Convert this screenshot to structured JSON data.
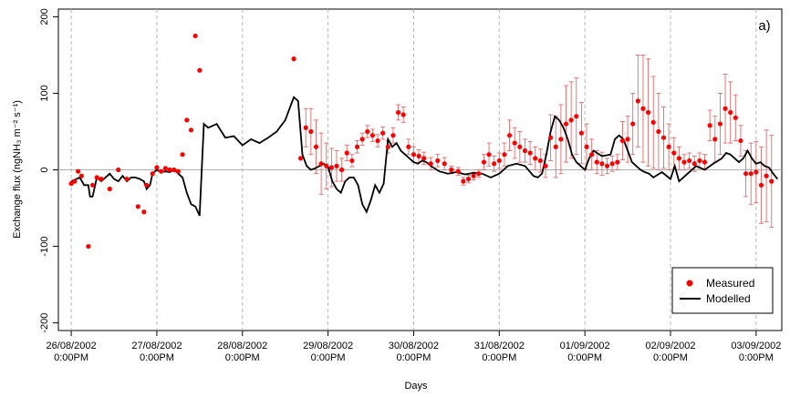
{
  "chart_data": {
    "type": "scatter",
    "panel_label": "a)",
    "xlabel": "Days",
    "ylabel": "Exchange flux (ngNH₃ m⁻² s⁻¹)",
    "ylim": [
      -210,
      210
    ],
    "xlim": [
      -0.15,
      8.3
    ],
    "yticks": [
      -200,
      -100,
      0,
      100,
      200
    ],
    "xticks": [
      {
        "pos": 0,
        "date": "26/08/2002",
        "time": "0:00PM"
      },
      {
        "pos": 1,
        "date": "27/08/2002",
        "time": "0:00PM"
      },
      {
        "pos": 2,
        "date": "28/08/2002",
        "time": "0:00PM"
      },
      {
        "pos": 3,
        "date": "29/08/2002",
        "time": "0:00PM"
      },
      {
        "pos": 4,
        "date": "30/08/2002",
        "time": "0:00PM"
      },
      {
        "pos": 5,
        "date": "31/08/2002",
        "time": "0:00PM"
      },
      {
        "pos": 6,
        "date": "01/09/2002",
        "time": "0:00PM"
      },
      {
        "pos": 7,
        "date": "02/09/2002",
        "time": "0:00PM"
      },
      {
        "pos": 8,
        "date": "03/09/2002",
        "time": "0:00PM"
      }
    ],
    "grid": "vertical dashed at day ticks",
    "reference_line_y": 0,
    "legend_position": "bottom-right",
    "series": [
      {
        "name": "Measured",
        "kind": "points",
        "color": "#ff0000",
        "x": [
          0.0,
          0.04,
          0.08,
          0.12,
          0.2,
          0.25,
          0.3,
          0.35,
          0.45,
          0.55,
          0.65,
          0.78,
          0.85,
          0.88,
          0.95,
          1.0,
          1.05,
          1.1,
          1.15,
          1.2,
          1.25,
          1.3,
          1.35,
          1.4,
          1.45,
          1.5,
          2.6,
          2.68,
          2.74,
          2.8,
          2.86,
          2.92,
          2.98,
          3.04,
          3.1,
          3.16,
          3.22,
          3.28,
          3.34,
          3.4,
          3.46,
          3.52,
          3.58,
          3.64,
          3.7,
          3.76,
          3.82,
          3.88,
          3.94,
          4.0,
          4.06,
          4.12,
          4.2,
          4.28,
          4.36,
          4.44,
          4.52,
          4.58,
          4.64,
          4.7,
          4.76,
          4.82,
          4.88,
          4.94,
          5.0,
          5.06,
          5.12,
          5.18,
          5.24,
          5.3,
          5.36,
          5.42,
          5.48,
          5.54,
          5.6,
          5.66,
          5.72,
          5.78,
          5.84,
          5.9,
          5.96,
          6.02,
          6.08,
          6.14,
          6.2,
          6.26,
          6.32,
          6.38,
          6.44,
          6.5,
          6.56,
          6.62,
          6.68,
          6.74,
          6.8,
          6.86,
          6.92,
          6.98,
          7.04,
          7.1,
          7.16,
          7.22,
          7.28,
          7.34,
          7.4,
          7.46,
          7.52,
          7.58,
          7.64,
          7.7,
          7.76,
          7.82,
          7.88,
          7.94,
          8.0,
          8.06,
          8.12,
          8.18
        ],
        "y": [
          -18,
          -15,
          -2,
          -8,
          -100,
          -20,
          -10,
          -12,
          -25,
          0,
          -12,
          -48,
          -55,
          -20,
          -5,
          3,
          -2,
          2,
          0,
          0,
          -2,
          20,
          65,
          52,
          175,
          130,
          145,
          15,
          55,
          50,
          30,
          8,
          5,
          3,
          5,
          0,
          22,
          12,
          30,
          40,
          50,
          45,
          38,
          48,
          30,
          45,
          75,
          72,
          30,
          20,
          18,
          15,
          8,
          12,
          8,
          0,
          -2,
          -15,
          -12,
          -8,
          -5,
          10,
          20,
          8,
          12,
          20,
          45,
          35,
          30,
          25,
          22,
          15,
          12,
          5,
          42,
          30,
          40,
          60,
          65,
          70,
          48,
          30,
          20,
          10,
          8,
          5,
          8,
          10,
          38,
          40,
          60,
          90,
          80,
          75,
          62,
          50,
          42,
          30,
          22,
          15,
          10,
          12,
          8,
          12,
          10,
          58,
          40,
          60,
          80,
          75,
          68,
          38,
          -5,
          -5,
          -3,
          -20,
          -8,
          -15
        ],
        "error": [
          0,
          0,
          0,
          0,
          0,
          0,
          0,
          0,
          0,
          0,
          0,
          0,
          0,
          0,
          0,
          0,
          0,
          0,
          0,
          0,
          0,
          0,
          0,
          0,
          0,
          0,
          0,
          0,
          25,
          30,
          35,
          40,
          30,
          25,
          20,
          15,
          10,
          8,
          8,
          8,
          8,
          8,
          8,
          8,
          8,
          10,
          10,
          10,
          10,
          10,
          8,
          8,
          8,
          8,
          8,
          5,
          5,
          5,
          5,
          5,
          5,
          10,
          15,
          10,
          10,
          15,
          20,
          20,
          20,
          15,
          15,
          15,
          15,
          15,
          30,
          40,
          45,
          50,
          50,
          50,
          40,
          30,
          20,
          15,
          15,
          10,
          10,
          10,
          25,
          30,
          40,
          60,
          70,
          70,
          60,
          50,
          40,
          30,
          20,
          15,
          10,
          10,
          10,
          10,
          10,
          20,
          30,
          40,
          45,
          40,
          30,
          20,
          30,
          40,
          40,
          50,
          60,
          60
        ]
      },
      {
        "name": "Modelled",
        "kind": "line",
        "color": "#000000",
        "x": [
          0.0,
          0.1,
          0.15,
          0.2,
          0.22,
          0.25,
          0.3,
          0.35,
          0.4,
          0.45,
          0.5,
          0.55,
          0.6,
          0.65,
          0.7,
          0.75,
          0.8,
          0.85,
          0.88,
          0.92,
          0.95,
          1.0,
          1.05,
          1.1,
          1.15,
          1.2,
          1.25,
          1.3,
          1.35,
          1.4,
          1.45,
          1.5,
          1.55,
          1.6,
          1.7,
          1.8,
          1.9,
          2.0,
          2.1,
          2.2,
          2.3,
          2.4,
          2.5,
          2.6,
          2.65,
          2.7,
          2.75,
          2.8,
          2.85,
          2.9,
          2.95,
          3.0,
          3.05,
          3.1,
          3.15,
          3.2,
          3.25,
          3.3,
          3.35,
          3.4,
          3.45,
          3.5,
          3.55,
          3.6,
          3.65,
          3.7,
          3.75,
          3.8,
          3.85,
          3.9,
          3.95,
          4.0,
          4.05,
          4.1,
          4.15,
          4.2,
          4.3,
          4.4,
          4.5,
          4.6,
          4.7,
          4.8,
          4.9,
          5.0,
          5.1,
          5.2,
          5.3,
          5.4,
          5.45,
          5.5,
          5.55,
          5.6,
          5.65,
          5.7,
          5.75,
          5.8,
          5.85,
          5.9,
          5.95,
          6.0,
          6.05,
          6.1,
          6.2,
          6.3,
          6.35,
          6.4,
          6.45,
          6.5,
          6.55,
          6.6,
          6.65,
          6.7,
          6.75,
          6.8,
          6.9,
          7.0,
          7.05,
          7.1,
          7.2,
          7.3,
          7.4,
          7.5,
          7.6,
          7.65,
          7.7,
          7.75,
          7.8,
          7.85,
          7.9,
          7.95,
          8.0,
          8.05,
          8.1,
          8.15,
          8.2,
          8.25
        ],
        "y": [
          -15,
          -10,
          -20,
          -20,
          -35,
          -35,
          -10,
          -15,
          -10,
          -5,
          -12,
          -15,
          -8,
          -15,
          -10,
          -10,
          -12,
          -15,
          -25,
          -20,
          -5,
          0,
          -3,
          -2,
          -3,
          0,
          -5,
          -10,
          -30,
          -45,
          -48,
          -60,
          60,
          55,
          60,
          42,
          44,
          32,
          40,
          35,
          42,
          50,
          65,
          95,
          90,
          20,
          5,
          0,
          2,
          5,
          8,
          4,
          -15,
          -25,
          -30,
          -15,
          -10,
          -10,
          -20,
          -45,
          -55,
          -40,
          -20,
          -30,
          -18,
          40,
          30,
          35,
          25,
          20,
          15,
          10,
          8,
          12,
          10,
          5,
          -2,
          -5,
          -3,
          -6,
          -4,
          -5,
          -10,
          -5,
          5,
          8,
          5,
          -8,
          -10,
          -5,
          20,
          50,
          70,
          65,
          55,
          40,
          20,
          10,
          5,
          0,
          15,
          25,
          18,
          20,
          40,
          45,
          40,
          25,
          10,
          5,
          0,
          -3,
          -5,
          -10,
          -3,
          -12,
          5,
          -15,
          -5,
          5,
          0,
          8,
          15,
          22,
          20,
          15,
          10,
          15,
          25,
          15,
          8,
          10,
          5,
          3,
          -5,
          -12
        ]
      }
    ]
  }
}
